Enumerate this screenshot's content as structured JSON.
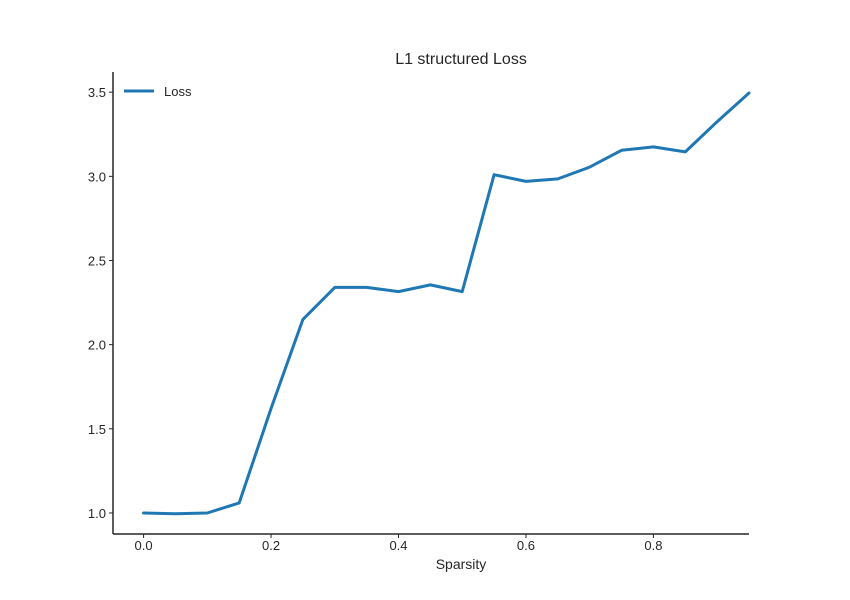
{
  "chart_data": {
    "type": "line",
    "title": "L1 structured Loss",
    "xlabel": "Sparsity",
    "ylabel": "",
    "x": [
      0.0,
      0.05,
      0.1,
      0.15,
      0.2,
      0.25,
      0.3,
      0.35,
      0.4,
      0.45,
      0.5,
      0.55,
      0.6,
      0.65,
      0.7,
      0.75,
      0.8,
      0.85,
      0.9,
      0.95
    ],
    "series": [
      {
        "name": "Loss",
        "color": "#1f77b4",
        "values": [
          1.0,
          0.995,
          1.0,
          1.06,
          1.62,
          2.15,
          2.34,
          2.34,
          2.315,
          2.355,
          2.315,
          3.01,
          2.97,
          2.985,
          3.055,
          3.155,
          3.175,
          3.145,
          3.325,
          3.495
        ]
      }
    ],
    "xlim": [
      -0.048,
      0.95
    ],
    "ylim": [
      0.875,
      3.62
    ],
    "xticks": [
      0.0,
      0.2,
      0.4,
      0.6,
      0.8
    ],
    "xtick_labels": [
      "0.0",
      "0.2",
      "0.4",
      "0.6",
      "0.8"
    ],
    "yticks": [
      1.0,
      1.5,
      2.0,
      2.5,
      3.0,
      3.5
    ],
    "ytick_labels": [
      "1.0",
      "1.5",
      "2.0",
      "2.5",
      "3.0",
      "3.5"
    ],
    "grid": false,
    "legend": {
      "placement": "top-left",
      "entries": [
        "Loss"
      ]
    }
  }
}
